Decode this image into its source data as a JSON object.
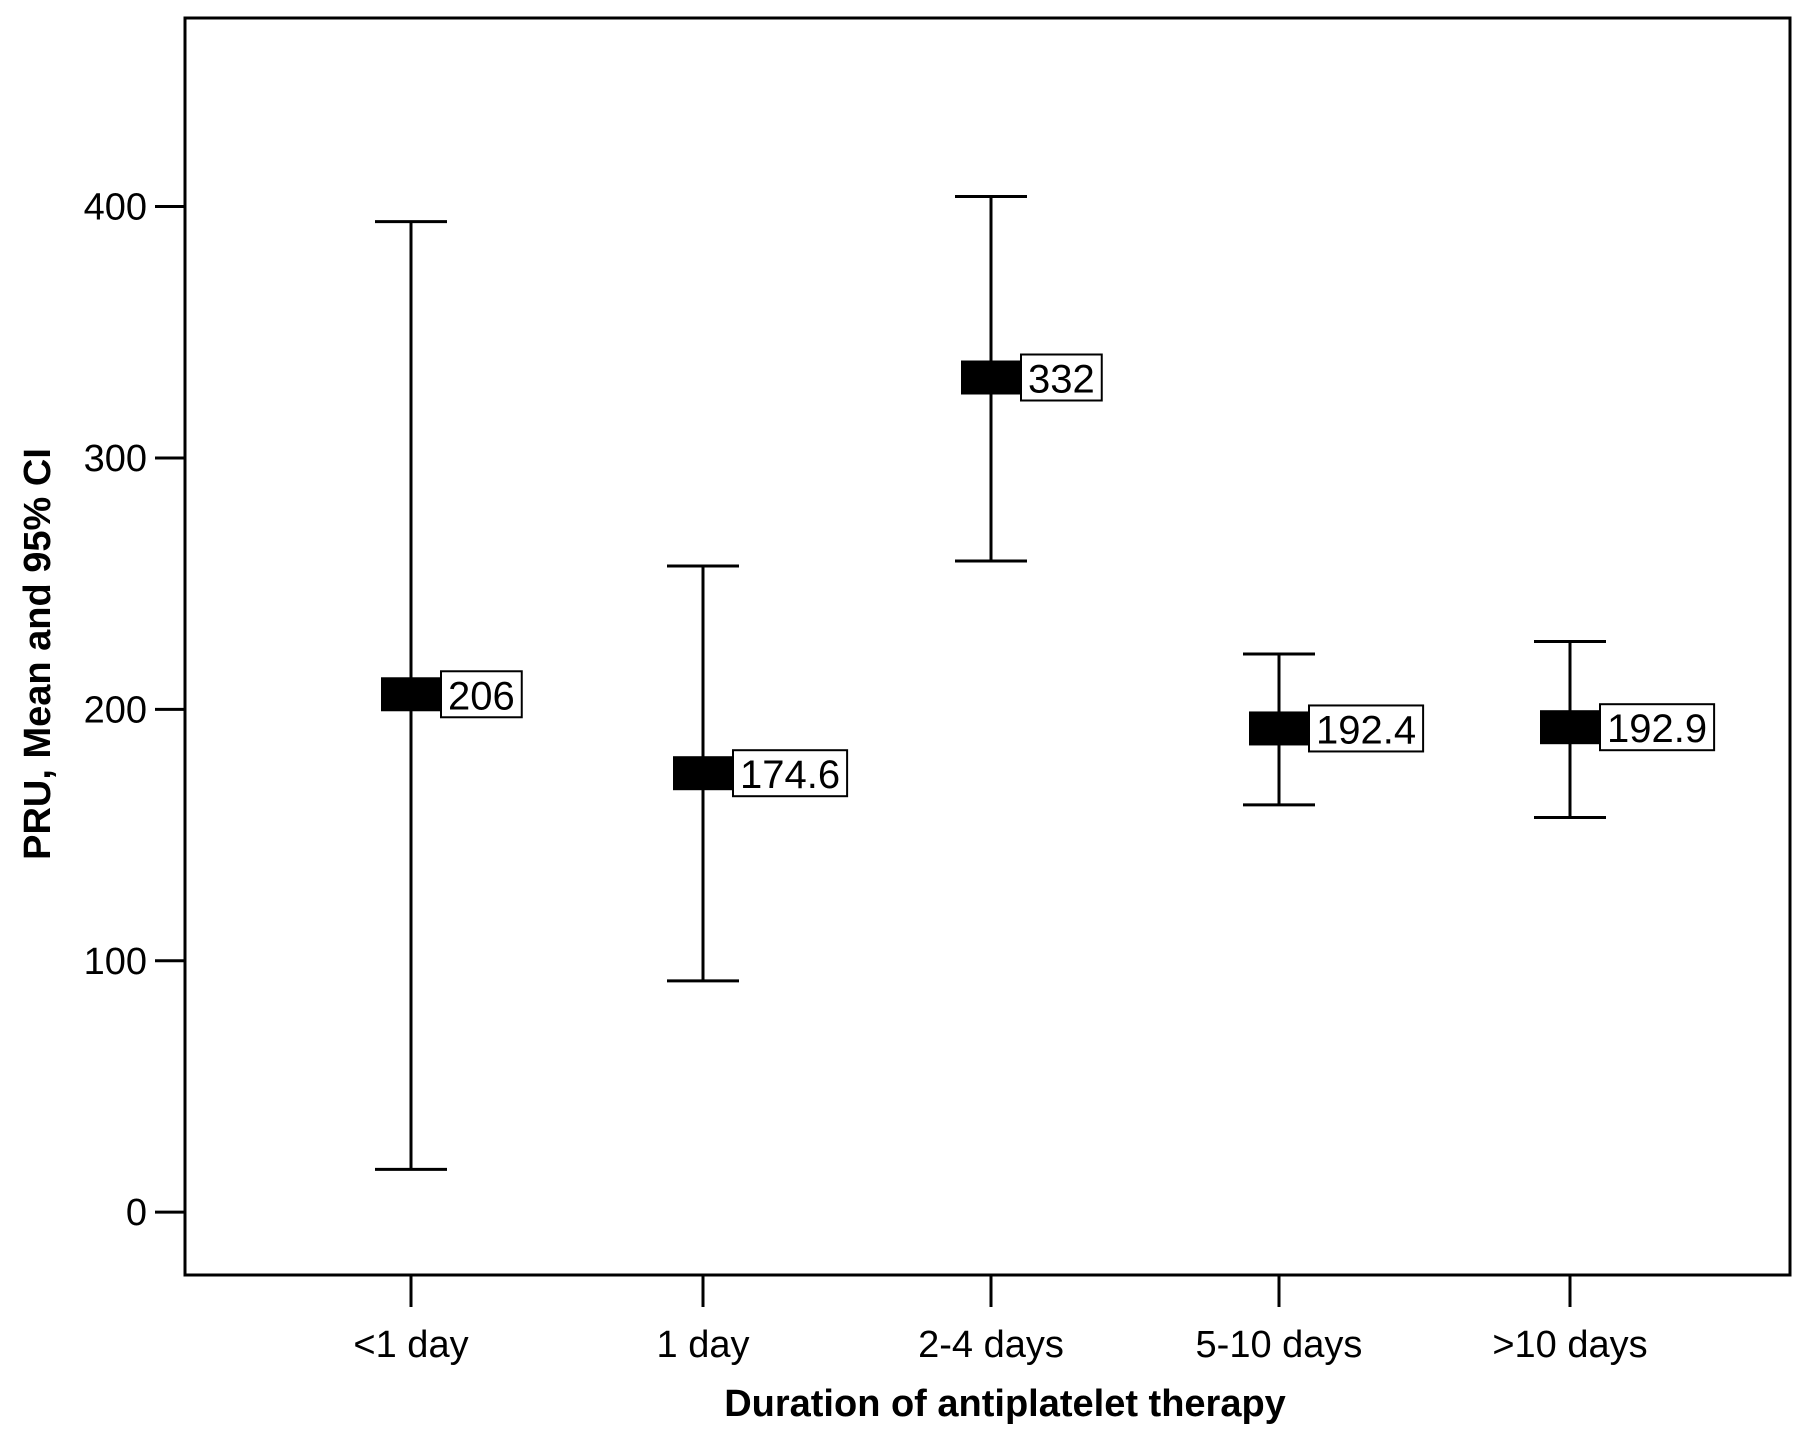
{
  "chart_data": {
    "type": "errorbar",
    "xlabel": "Duration of antiplatelet therapy",
    "ylabel": "PRU, Mean and 95% CI",
    "ylim": [
      -25,
      475
    ],
    "yticks": [
      0,
      100,
      200,
      300,
      400
    ],
    "categories": [
      "<1 day",
      "1 day",
      "2-4 days",
      "5-10 days",
      ">10 days"
    ],
    "means": [
      206,
      174.6,
      332,
      192.4,
      192.9
    ],
    "mean_labels": [
      "206",
      "174.6",
      "332",
      "192.4",
      "192.9"
    ],
    "ci_lower": [
      17,
      92,
      259,
      162,
      157
    ],
    "ci_upper": [
      394,
      257,
      404,
      222,
      227
    ],
    "grid": false,
    "colors": {
      "marker": "#000000",
      "line": "#000000",
      "background": "#ffffff"
    }
  }
}
